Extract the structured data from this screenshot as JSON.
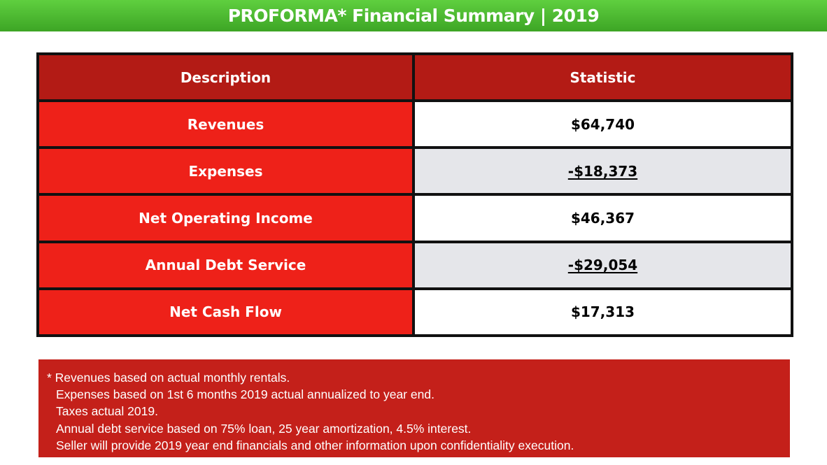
{
  "banner": {
    "title": "PROFORMA* Financial Summary | 2019"
  },
  "table": {
    "headers": [
      "Description",
      "Statistic"
    ],
    "rows": [
      {
        "label": "Revenues",
        "value": "$64,740",
        "underline": false
      },
      {
        "label": "Expenses",
        "value": "-$18,373",
        "underline": true
      },
      {
        "label": "Net Operating Income",
        "value": "$46,367",
        "underline": false
      },
      {
        "label": "Annual Debt Service",
        "value": "-$29,054",
        "underline": true
      },
      {
        "label": "Net Cash Flow",
        "value": "$17,313",
        "underline": false
      }
    ]
  },
  "notes": {
    "lines": [
      "* Revenues based on actual monthly rentals.",
      "Expenses based on 1st 6 months 2019 actual annualized to year end.",
      "Taxes actual 2019.",
      "Annual debt service based on 75% loan, 25 year amortization, 4.5% interest.",
      "Seller will provide 2019 year end financials and other information upon confidentiality execution."
    ]
  },
  "colors": {
    "banner_green": "#4cbb32",
    "header_red": "#b31b15",
    "label_red": "#ee2119",
    "notes_red": "#c4201a",
    "alt_row_gray": "#e5e6ea"
  }
}
